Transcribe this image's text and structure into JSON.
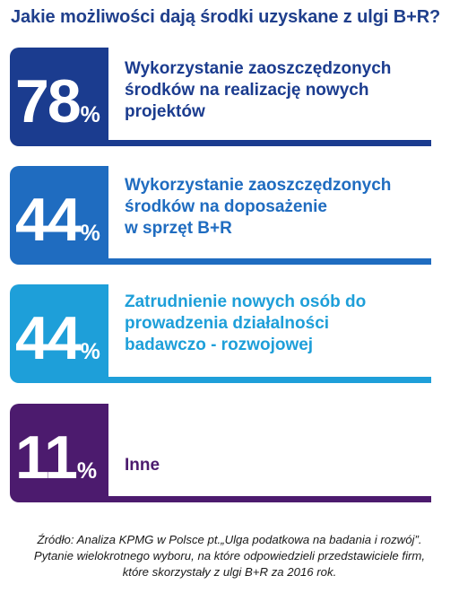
{
  "title": "Jakie możliwości dają środki uzyskane z ulgi B+R?",
  "chart_data": {
    "type": "bar",
    "title": "Jakie możliwości dają środki uzyskane z ulgi B+R?",
    "categories": [
      "Wykorzystanie zaoszczędzonych środków na realizację nowych projektów",
      "Wykorzystanie zaoszczędzonych środków na doposażenie w sprzęt B+R",
      "Zatrudnienie nowych osób do prowadzenia działalności badawczo - rozwojowej",
      "Inne"
    ],
    "values": [
      78,
      44,
      44,
      11
    ],
    "unit": "%",
    "colors": [
      "#1b3c8f",
      "#1f6cc0",
      "#1e9fd9",
      "#4c1b6e"
    ],
    "rows": [
      {
        "value": "78",
        "pct": "%",
        "label": "Wykorzystanie zaoszczędzonych\nśrodków na realizację nowych\nprojektów",
        "color": "#1b3c8f"
      },
      {
        "value": "44",
        "pct": "%",
        "label": "Wykorzystanie zaoszczędzonych\nśrodków na doposażenie\nw sprzęt B+R",
        "color": "#1f6cc0"
      },
      {
        "value": "44",
        "pct": "%",
        "label": "Zatrudnienie nowych osób do\nprowadzenia działalności\nbadawczo - rozwojowej",
        "color": "#1e9fd9"
      },
      {
        "value": "11",
        "pct": "%",
        "label": "Inne",
        "color": "#4c1b6e"
      }
    ]
  },
  "footnote": "Źródło: Analiza KPMG w Polsce pt.„Ulga podatkowa na badania i rozwój”.\nPytanie wielokrotnego wyboru, na które odpowiedzieli przedstawiciele firm,\nktóre skorzystały z ulgi B+R za 2016 rok."
}
